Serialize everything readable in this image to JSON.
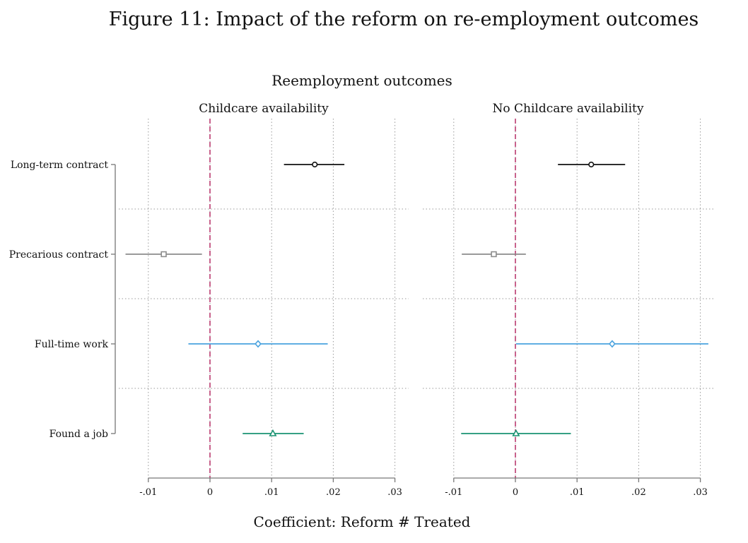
{
  "figure_title": "Figure 11: Impact of the reform on re-employment outcomes",
  "chart_data": {
    "type": "coefficient_plot",
    "title": "Reemployment outcomes",
    "xlabel": "Coefficient: Reform # Treated",
    "xlim": [
      -0.01,
      0.03
    ],
    "xticks": [
      -0.01,
      0,
      0.01,
      0.02,
      0.03
    ],
    "xtick_labels": [
      "-.01",
      "0",
      ".01",
      ".02",
      ".03"
    ],
    "reference_line": 0,
    "reference_color": "#c2517f",
    "grid": true,
    "outcomes": [
      {
        "label": "Long-term contract",
        "marker": "circle",
        "color": "#111111"
      },
      {
        "label": "Precarious contract",
        "marker": "square",
        "color": "#8c8c8c"
      },
      {
        "label": "Full-time work",
        "marker": "diamond",
        "color": "#4aa3df"
      },
      {
        "label": "Found a job",
        "marker": "triangle",
        "color": "#1a9372"
      }
    ],
    "panels": [
      {
        "title": "Childcare availability",
        "estimates": [
          {
            "outcome": "Long-term contract",
            "coef": 0.017,
            "ci_low": 0.012,
            "ci_high": 0.0218
          },
          {
            "outcome": "Precarious contract",
            "coef": -0.0075,
            "ci_low": -0.0137,
            "ci_high": -0.0013
          },
          {
            "outcome": "Full-time work",
            "coef": 0.0078,
            "ci_low": -0.0035,
            "ci_high": 0.0191
          },
          {
            "outcome": "Found a job",
            "coef": 0.0102,
            "ci_low": 0.0053,
            "ci_high": 0.0152
          }
        ]
      },
      {
        "title": "No Childcare availability",
        "estimates": [
          {
            "outcome": "Long-term contract",
            "coef": 0.0123,
            "ci_low": 0.0069,
            "ci_high": 0.0178
          },
          {
            "outcome": "Precarious contract",
            "coef": -0.0035,
            "ci_low": -0.0087,
            "ci_high": 0.0017
          },
          {
            "outcome": "Full-time work",
            "coef": 0.0157,
            "ci_low": 0.0001,
            "ci_high": 0.0313
          },
          {
            "outcome": "Found a job",
            "coef": 0.0001,
            "ci_low": -0.0088,
            "ci_high": 0.009
          }
        ]
      }
    ]
  }
}
